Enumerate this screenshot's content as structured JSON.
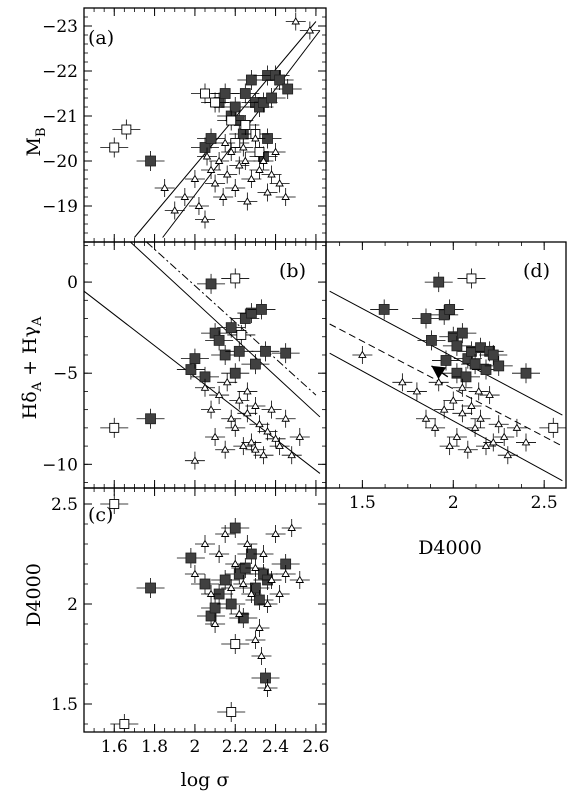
{
  "chart_data": [
    {
      "id": "a",
      "panel_label": "(a)",
      "type": "scatter",
      "xlabel": "",
      "ylabel_main": "M",
      "ylabel_sub": "B",
      "xlim": [
        1.45,
        2.65
      ],
      "ylim": [
        -18.2,
        -23.4
      ],
      "yticks": [
        -19,
        -20,
        -21,
        -22,
        -23
      ],
      "ytick_labels": [
        "-19",
        "-20",
        "-21",
        "-22",
        "-23"
      ],
      "fit_lines": [
        {
          "x": [
            1.7,
            2.6
          ],
          "y": [
            -18.3,
            -23.1
          ]
        },
        {
          "x": [
            1.84,
            2.62
          ],
          "y": [
            -18.3,
            -22.9
          ]
        }
      ],
      "series": [
        {
          "marker": "filled-square",
          "points": [
            [
              1.78,
              -20.0
            ],
            [
              2.05,
              -20.3
            ],
            [
              2.08,
              -20.5
            ],
            [
              2.12,
              -21.3
            ],
            [
              2.15,
              -21.5
            ],
            [
              2.18,
              -21.0
            ],
            [
              2.2,
              -21.2
            ],
            [
              2.22,
              -20.9
            ],
            [
              2.25,
              -21.5
            ],
            [
              2.28,
              -21.8
            ],
            [
              2.3,
              -21.3
            ],
            [
              2.32,
              -21.2
            ],
            [
              2.34,
              -21.3
            ],
            [
              2.36,
              -21.9
            ],
            [
              2.38,
              -21.4
            ],
            [
              2.4,
              -21.9
            ],
            [
              2.42,
              -21.8
            ],
            [
              2.46,
              -21.6
            ],
            [
              2.36,
              -20.5
            ],
            [
              2.24,
              -20.6
            ],
            [
              2.34,
              -20.1
            ]
          ]
        },
        {
          "marker": "open-square",
          "points": [
            [
              1.6,
              -20.3
            ],
            [
              1.66,
              -20.7
            ],
            [
              2.05,
              -21.5
            ],
            [
              2.1,
              -21.3
            ],
            [
              2.18,
              -20.9
            ],
            [
              2.2,
              -20.4
            ],
            [
              2.25,
              -20.8
            ],
            [
              2.3,
              -20.6
            ],
            [
              2.32,
              -20.2
            ]
          ]
        },
        {
          "marker": "triangle",
          "points": [
            [
              1.95,
              -19.2
            ],
            [
              2.0,
              -19.6
            ],
            [
              2.02,
              -19.0
            ],
            [
              2.05,
              -18.7
            ],
            [
              2.08,
              -19.8
            ],
            [
              2.1,
              -19.5
            ],
            [
              2.12,
              -20.0
            ],
            [
              2.14,
              -19.2
            ],
            [
              2.16,
              -19.7
            ],
            [
              2.18,
              -20.2
            ],
            [
              2.2,
              -19.4
            ],
            [
              2.22,
              -19.9
            ],
            [
              2.24,
              -20.3
            ],
            [
              2.26,
              -19.1
            ],
            [
              2.28,
              -19.6
            ],
            [
              2.3,
              -20.5
            ],
            [
              2.32,
              -19.8
            ],
            [
              2.34,
              -20.0
            ],
            [
              2.36,
              -19.3
            ],
            [
              2.38,
              -19.7
            ],
            [
              2.4,
              -20.2
            ],
            [
              2.42,
              -19.5
            ],
            [
              2.45,
              -19.2
            ],
            [
              2.5,
              -23.1
            ],
            [
              2.57,
              -22.9
            ],
            [
              1.9,
              -18.9
            ],
            [
              1.85,
              -19.4
            ],
            [
              2.06,
              -20.1
            ],
            [
              2.15,
              -20.4
            ],
            [
              2.25,
              -20.0
            ]
          ]
        }
      ]
    },
    {
      "id": "b",
      "panel_label": "(b)",
      "type": "scatter",
      "xlabel": "",
      "ylabel": "",
      "xlim": [
        1.45,
        2.65
      ],
      "ylim": [
        -11.3,
        2.2
      ],
      "yticks": [
        0,
        -5,
        -10
      ],
      "ytick_labels": [
        "0",
        "-5",
        "-10"
      ],
      "fit_lines": [
        {
          "style": "solid",
          "x": [
            1.45,
            2.62
          ],
          "y": [
            -0.5,
            -10.5
          ]
        },
        {
          "style": "solid",
          "x": [
            1.68,
            2.62
          ],
          "y": [
            2.2,
            -7.4
          ]
        },
        {
          "style": "dashdot",
          "x": [
            1.76,
            2.6
          ],
          "y": [
            2.2,
            -6.2
          ]
        }
      ],
      "series": [
        {
          "marker": "filled-square",
          "points": [
            [
              1.78,
              -7.5
            ],
            [
              1.98,
              -4.8
            ],
            [
              2.05,
              -5.2
            ],
            [
              2.08,
              -0.1
            ],
            [
              2.1,
              -2.8
            ],
            [
              2.12,
              -3.2
            ],
            [
              2.15,
              -4.0
            ],
            [
              2.18,
              -2.5
            ],
            [
              2.2,
              -5.0
            ],
            [
              2.22,
              -3.8
            ],
            [
              2.25,
              -2.0
            ],
            [
              2.28,
              -1.7
            ],
            [
              2.3,
              -4.5
            ],
            [
              2.33,
              -1.5
            ],
            [
              2.35,
              -3.8
            ],
            [
              2.45,
              -3.9
            ],
            [
              2.0,
              -4.2
            ]
          ]
        },
        {
          "marker": "open-square",
          "points": [
            [
              1.6,
              -8.0
            ],
            [
              2.2,
              0.2
            ],
            [
              2.23,
              -2.9
            ]
          ]
        },
        {
          "marker": "triangle",
          "points": [
            [
              2.0,
              -9.8
            ],
            [
              2.05,
              -5.8
            ],
            [
              2.08,
              -7.0
            ],
            [
              2.1,
              -8.5
            ],
            [
              2.12,
              -6.2
            ],
            [
              2.15,
              -9.2
            ],
            [
              2.18,
              -7.5
            ],
            [
              2.2,
              -8.0
            ],
            [
              2.22,
              -6.5
            ],
            [
              2.24,
              -9.0
            ],
            [
              2.26,
              -7.2
            ],
            [
              2.28,
              -8.8
            ],
            [
              2.3,
              -6.8
            ],
            [
              2.32,
              -7.8
            ],
            [
              2.34,
              -9.5
            ],
            [
              2.36,
              -8.2
            ],
            [
              2.38,
              -7.0
            ],
            [
              2.4,
              -8.6
            ],
            [
              2.42,
              -9.0
            ],
            [
              2.45,
              -7.5
            ],
            [
              2.48,
              -9.5
            ],
            [
              2.52,
              -8.5
            ],
            [
              2.16,
              -5.5
            ],
            [
              2.26,
              -6.0
            ],
            [
              2.3,
              -9.2
            ]
          ]
        }
      ]
    },
    {
      "id": "c",
      "panel_label": "(c)",
      "type": "scatter",
      "xlabel": "log σ",
      "ylabel": "D4000",
      "xlim": [
        1.45,
        2.65
      ],
      "ylim": [
        1.36,
        2.58
      ],
      "xticks": [
        1.6,
        1.8,
        2.0,
        2.2,
        2.4,
        2.6
      ],
      "xtick_labels": [
        "1.6",
        "1.8",
        "2",
        "2.2",
        "2.4",
        "2.6"
      ],
      "yticks": [
        1.5,
        2.0,
        2.5
      ],
      "ytick_labels": [
        "1.5",
        "2",
        "2.5"
      ],
      "series": [
        {
          "marker": "filled-square",
          "points": [
            [
              1.78,
              2.08
            ],
            [
              1.98,
              2.23
            ],
            [
              2.05,
              2.1
            ],
            [
              2.08,
              1.94
            ],
            [
              2.1,
              1.98
            ],
            [
              2.12,
              2.05
            ],
            [
              2.15,
              2.12
            ],
            [
              2.18,
              2.0
            ],
            [
              2.2,
              2.38
            ],
            [
              2.22,
              2.15
            ],
            [
              2.24,
              1.93
            ],
            [
              2.25,
              2.18
            ],
            [
              2.28,
              2.25
            ],
            [
              2.3,
              2.08
            ],
            [
              2.32,
              2.02
            ],
            [
              2.34,
              2.15
            ],
            [
              2.36,
              2.12
            ],
            [
              2.35,
              1.63
            ],
            [
              2.45,
              2.2
            ]
          ]
        },
        {
          "marker": "open-square",
          "points": [
            [
              1.6,
              2.5
            ],
            [
              1.65,
              1.4
            ],
            [
              2.18,
              1.46
            ],
            [
              2.2,
              1.8
            ]
          ]
        },
        {
          "marker": "triangle",
          "points": [
            [
              2.0,
              2.15
            ],
            [
              2.05,
              2.3
            ],
            [
              2.08,
              2.05
            ],
            [
              2.1,
              1.9
            ],
            [
              2.12,
              2.25
            ],
            [
              2.15,
              2.35
            ],
            [
              2.18,
              2.08
            ],
            [
              2.2,
              2.2
            ],
            [
              2.22,
              1.95
            ],
            [
              2.24,
              2.1
            ],
            [
              2.26,
              2.3
            ],
            [
              2.28,
              2.05
            ],
            [
              2.3,
              2.18
            ],
            [
              2.32,
              1.88
            ],
            [
              2.34,
              2.25
            ],
            [
              2.36,
              2.0
            ],
            [
              2.38,
              2.12
            ],
            [
              2.4,
              2.35
            ],
            [
              2.42,
              2.05
            ],
            [
              2.45,
              2.15
            ],
            [
              2.48,
              2.38
            ],
            [
              2.52,
              2.12
            ],
            [
              2.3,
              1.82
            ],
            [
              2.33,
              1.74
            ],
            [
              2.36,
              1.58
            ]
          ]
        }
      ]
    },
    {
      "id": "d",
      "panel_label": "(d)",
      "type": "scatter",
      "xlabel": "D4000",
      "ylabel": "",
      "xlim": [
        1.3,
        2.62
      ],
      "ylim": [
        -11.3,
        2.2
      ],
      "xticks": [
        1.5,
        2.0,
        2.5
      ],
      "xtick_labels": [
        "1.5",
        "2",
        "2.5"
      ],
      "fit_lines": [
        {
          "style": "solid",
          "x": [
            1.32,
            2.6
          ],
          "y": [
            -0.5,
            -7.3
          ]
        },
        {
          "style": "dashed",
          "x": [
            1.32,
            2.6
          ],
          "y": [
            -2.3,
            -9.0
          ]
        },
        {
          "style": "solid",
          "x": [
            1.32,
            2.6
          ],
          "y": [
            -3.9,
            -10.9
          ]
        }
      ],
      "arrow": {
        "from": [
          1.97,
          -5.2
        ],
        "to": [
          1.88,
          -4.6
        ]
      },
      "series": [
        {
          "marker": "filled-square",
          "points": [
            [
              1.62,
              -1.5
            ],
            [
              1.85,
              -2.0
            ],
            [
              1.88,
              -3.2
            ],
            [
              1.92,
              0.0
            ],
            [
              1.95,
              -1.8
            ],
            [
              1.98,
              -1.5
            ],
            [
              2.0,
              -3.0
            ],
            [
              2.02,
              -3.5
            ],
            [
              2.05,
              -2.8
            ],
            [
              2.08,
              -4.2
            ],
            [
              2.1,
              -3.8
            ],
            [
              2.12,
              -4.5
            ],
            [
              2.15,
              -3.6
            ],
            [
              2.18,
              -4.8
            ],
            [
              2.2,
              -3.8
            ],
            [
              2.22,
              -4.0
            ],
            [
              2.25,
              -4.6
            ],
            [
              2.4,
              -5.0
            ],
            [
              1.96,
              -4.3
            ],
            [
              2.02,
              -5.0
            ],
            [
              2.07,
              -5.2
            ]
          ]
        },
        {
          "marker": "open-square",
          "points": [
            [
              2.1,
              0.2
            ],
            [
              2.55,
              -8.0
            ]
          ]
        },
        {
          "marker": "triangle",
          "points": [
            [
              1.5,
              -4.0
            ],
            [
              1.72,
              -5.5
            ],
            [
              1.8,
              -6.0
            ],
            [
              1.85,
              -7.5
            ],
            [
              1.9,
              -8.0
            ],
            [
              1.95,
              -7.0
            ],
            [
              1.98,
              -9.0
            ],
            [
              2.0,
              -6.5
            ],
            [
              2.02,
              -8.5
            ],
            [
              2.05,
              -7.2
            ],
            [
              2.08,
              -9.2
            ],
            [
              2.1,
              -6.8
            ],
            [
              2.12,
              -8.0
            ],
            [
              2.15,
              -7.5
            ],
            [
              2.18,
              -9.0
            ],
            [
              2.2,
              -6.2
            ],
            [
              2.22,
              -8.8
            ],
            [
              2.25,
              -7.8
            ],
            [
              2.28,
              -8.5
            ],
            [
              2.3,
              -9.5
            ],
            [
              2.35,
              -8.0
            ],
            [
              2.4,
              -8.8
            ],
            [
              1.92,
              -5.5
            ],
            [
              2.05,
              -5.8
            ],
            [
              2.14,
              -6.0
            ]
          ]
        }
      ]
    }
  ]
}
